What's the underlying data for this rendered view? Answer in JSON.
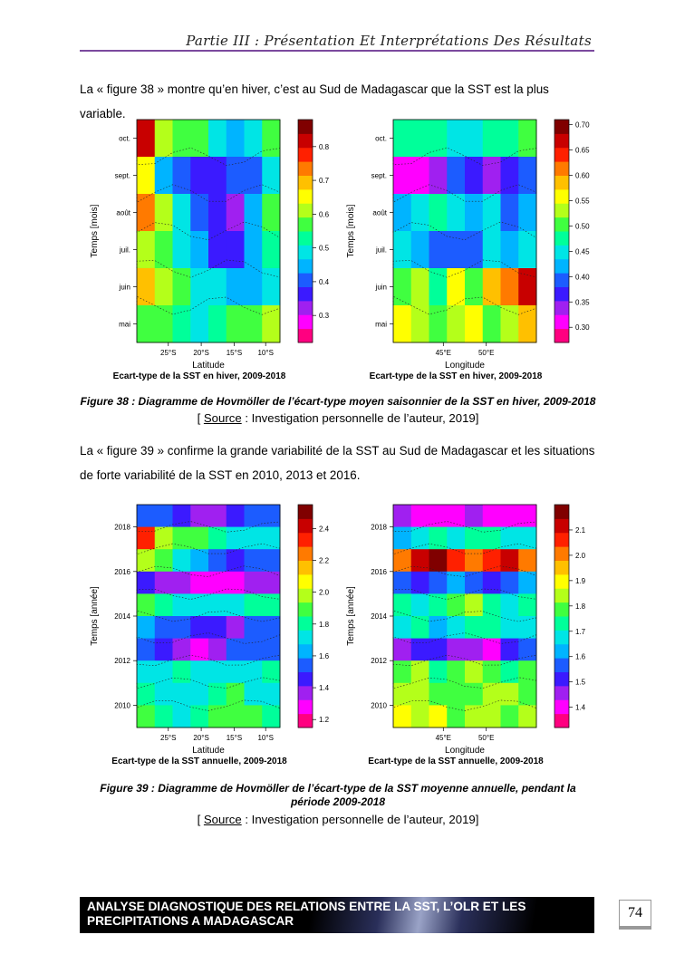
{
  "header": {
    "title": "Partie III : Présentation Et Interprétations Des Résultats"
  },
  "paragraphs": [
    "La « figure 38 » montre qu’en hiver, c’est au Sud de Madagascar que la SST est la plus variable.",
    "La « figure 39 » confirme la grande variabilité de la SST au Sud de Madagascar et les situations de forte variabilité de la SST en 2010, 2013 et 2016."
  ],
  "figure38": {
    "caption": "Figure 38 : Diagramme de Hovmöller de l’écart-type moyen saisonnier de la SST en hiver, 2009-2018",
    "source_label": "Source",
    "source_rest": " : Investigation personnelle de l’auteur, 2019]",
    "source_open": "[ "
  },
  "figure39": {
    "caption": "Figure 39 : Diagramme de Hovmöller de l’écart-type de la SST moyenne annuelle, pendant la période 2009-2018",
    "source_label": "Source",
    "source_rest": " : Investigation personnelle de l’auteur, 2019]",
    "source_open": "[ "
  },
  "footer": {
    "line1": "ANALYSE DIAGNOSTIQUE DES RELATIONS ENTRE LA SST, L’OLR ET LES",
    "line2": "PRECIPITATIONS A MADAGASCAR",
    "page_number": "74"
  },
  "colors": {
    "header_rule": "#7b4a9e"
  },
  "chart_data": [
    {
      "type": "heatmap",
      "title": "Ecart-type de la SST en hiver, 2009-2018",
      "xlabel": "Latitude",
      "ylabel": "Temps [mois]",
      "xticks": [
        "25°S",
        "20°S",
        "15°S",
        "10°S"
      ],
      "yticks": [
        "oct.",
        "sept.",
        "août",
        "juil.",
        "juin",
        "mai"
      ],
      "colorbar_ticks": [
        "0.8",
        "0.7",
        "0.6",
        "0.5",
        "0.4",
        "0.3"
      ],
      "colorbar_range": [
        0.22,
        0.88
      ],
      "values": [
        [
          0.82,
          0.62,
          0.58,
          0.55,
          0.5,
          0.45,
          0.5,
          0.55
        ],
        [
          0.65,
          0.45,
          0.4,
          0.35,
          0.35,
          0.4,
          0.42,
          0.48
        ],
        [
          0.75,
          0.62,
          0.48,
          0.42,
          0.35,
          0.32,
          0.45,
          0.55
        ],
        [
          0.6,
          0.55,
          0.48,
          0.45,
          0.38,
          0.38,
          0.45,
          0.52
        ],
        [
          0.68,
          0.62,
          0.55,
          0.5,
          0.48,
          0.45,
          0.45,
          0.5
        ],
        [
          0.58,
          0.55,
          0.52,
          0.5,
          0.52,
          0.55,
          0.58,
          0.62
        ]
      ]
    },
    {
      "type": "heatmap",
      "title": "Ecart-type de la SST en hiver, 2009-2018",
      "xlabel": "Longitude",
      "ylabel": "Temps [mois]",
      "xticks": [
        "45°E",
        "50°E"
      ],
      "yticks": [
        "oct.",
        "sept.",
        "août",
        "juil.",
        "juin",
        "mai"
      ],
      "colorbar_ticks": [
        "0.70",
        "0.65",
        "0.60",
        "0.55",
        "0.50",
        "0.45",
        "0.40",
        "0.35",
        "0.30"
      ],
      "colorbar_range": [
        0.27,
        0.71
      ],
      "values": [
        [
          0.47,
          0.48,
          0.47,
          0.45,
          0.46,
          0.47,
          0.48,
          0.49
        ],
        [
          0.3,
          0.32,
          0.35,
          0.38,
          0.36,
          0.34,
          0.36,
          0.4
        ],
        [
          0.42,
          0.45,
          0.48,
          0.44,
          0.42,
          0.45,
          0.4,
          0.42
        ],
        [
          0.45,
          0.43,
          0.4,
          0.38,
          0.4,
          0.45,
          0.42,
          0.45
        ],
        [
          0.5,
          0.52,
          0.48,
          0.55,
          0.5,
          0.58,
          0.62,
          0.68
        ],
        [
          0.55,
          0.52,
          0.5,
          0.52,
          0.55,
          0.5,
          0.52,
          0.58
        ]
      ]
    },
    {
      "type": "heatmap",
      "title": "Ecart-type de la SST annuelle, 2009-2018",
      "xlabel": "Latitude",
      "ylabel": "Temps [année]",
      "xticks": [
        "25°S",
        "20°S",
        "15°S",
        "10°S"
      ],
      "yticks": [
        "2018",
        "2016",
        "2014",
        "2012",
        "2010"
      ],
      "colorbar_ticks": [
        "2.4",
        "2.2",
        "2.0",
        "1.8",
        "1.6",
        "1.4",
        "1.2"
      ],
      "colorbar_range": [
        1.15,
        2.55
      ],
      "values": [
        [
          1.55,
          1.5,
          1.45,
          1.4,
          1.4,
          1.45,
          1.5,
          1.55
        ],
        [
          2.35,
          2.0,
          1.9,
          1.85,
          1.8,
          1.75,
          1.7,
          1.7
        ],
        [
          1.95,
          1.85,
          1.7,
          1.6,
          1.5,
          1.45,
          1.5,
          1.55
        ],
        [
          1.45,
          1.4,
          1.35,
          1.3,
          1.25,
          1.3,
          1.35,
          1.4
        ],
        [
          1.85,
          1.8,
          1.75,
          1.7,
          1.72,
          1.75,
          1.78,
          1.8
        ],
        [
          1.6,
          1.55,
          1.5,
          1.45,
          1.45,
          1.4,
          1.5,
          1.55
        ],
        [
          1.5,
          1.45,
          1.35,
          1.3,
          1.4,
          1.5,
          1.5,
          1.55
        ],
        [
          1.7,
          1.75,
          1.8,
          1.75,
          1.7,
          1.7,
          1.75,
          1.8
        ],
        [
          1.8,
          1.75,
          1.7,
          1.75,
          1.8,
          1.85,
          1.75,
          1.7
        ],
        [
          1.85,
          1.8,
          1.75,
          1.8,
          1.85,
          1.9,
          1.85,
          1.8
        ]
      ]
    },
    {
      "type": "heatmap",
      "title": "Ecart-type de la SST annuelle, 2009-2018",
      "xlabel": "Longitude",
      "ylabel": "Temps [année]",
      "xticks": [
        "45°E",
        "50°E"
      ],
      "yticks": [
        "2018",
        "2016",
        "2014",
        "2012",
        "2010"
      ],
      "colorbar_ticks": [
        "2.1",
        "2.0",
        "1.9",
        "1.8",
        "1.7",
        "1.6",
        "1.5",
        "1.4"
      ],
      "colorbar_range": [
        1.32,
        2.2
      ],
      "values": [
        [
          1.45,
          1.42,
          1.4,
          1.42,
          1.45,
          1.42,
          1.4,
          1.42
        ],
        [
          1.65,
          1.7,
          1.75,
          1.7,
          1.72,
          1.75,
          1.7,
          1.68
        ],
        [
          2.0,
          2.1,
          2.15,
          2.05,
          2.0,
          2.05,
          2.1,
          2.0
        ],
        [
          1.55,
          1.5,
          1.55,
          1.6,
          1.55,
          1.5,
          1.55,
          1.6
        ],
        [
          1.75,
          1.7,
          1.72,
          1.8,
          1.85,
          1.75,
          1.7,
          1.72
        ],
        [
          1.7,
          1.72,
          1.65,
          1.7,
          1.75,
          1.72,
          1.68,
          1.7
        ],
        [
          1.45,
          1.5,
          1.52,
          1.48,
          1.45,
          1.42,
          1.5,
          1.55
        ],
        [
          1.8,
          1.85,
          1.75,
          1.8,
          1.85,
          1.8,
          1.75,
          1.78
        ],
        [
          1.82,
          1.85,
          1.8,
          1.78,
          1.8,
          1.85,
          1.82,
          1.8
        ],
        [
          1.9,
          1.85,
          1.88,
          1.8,
          1.82,
          1.85,
          1.8,
          1.82
        ]
      ]
    }
  ]
}
